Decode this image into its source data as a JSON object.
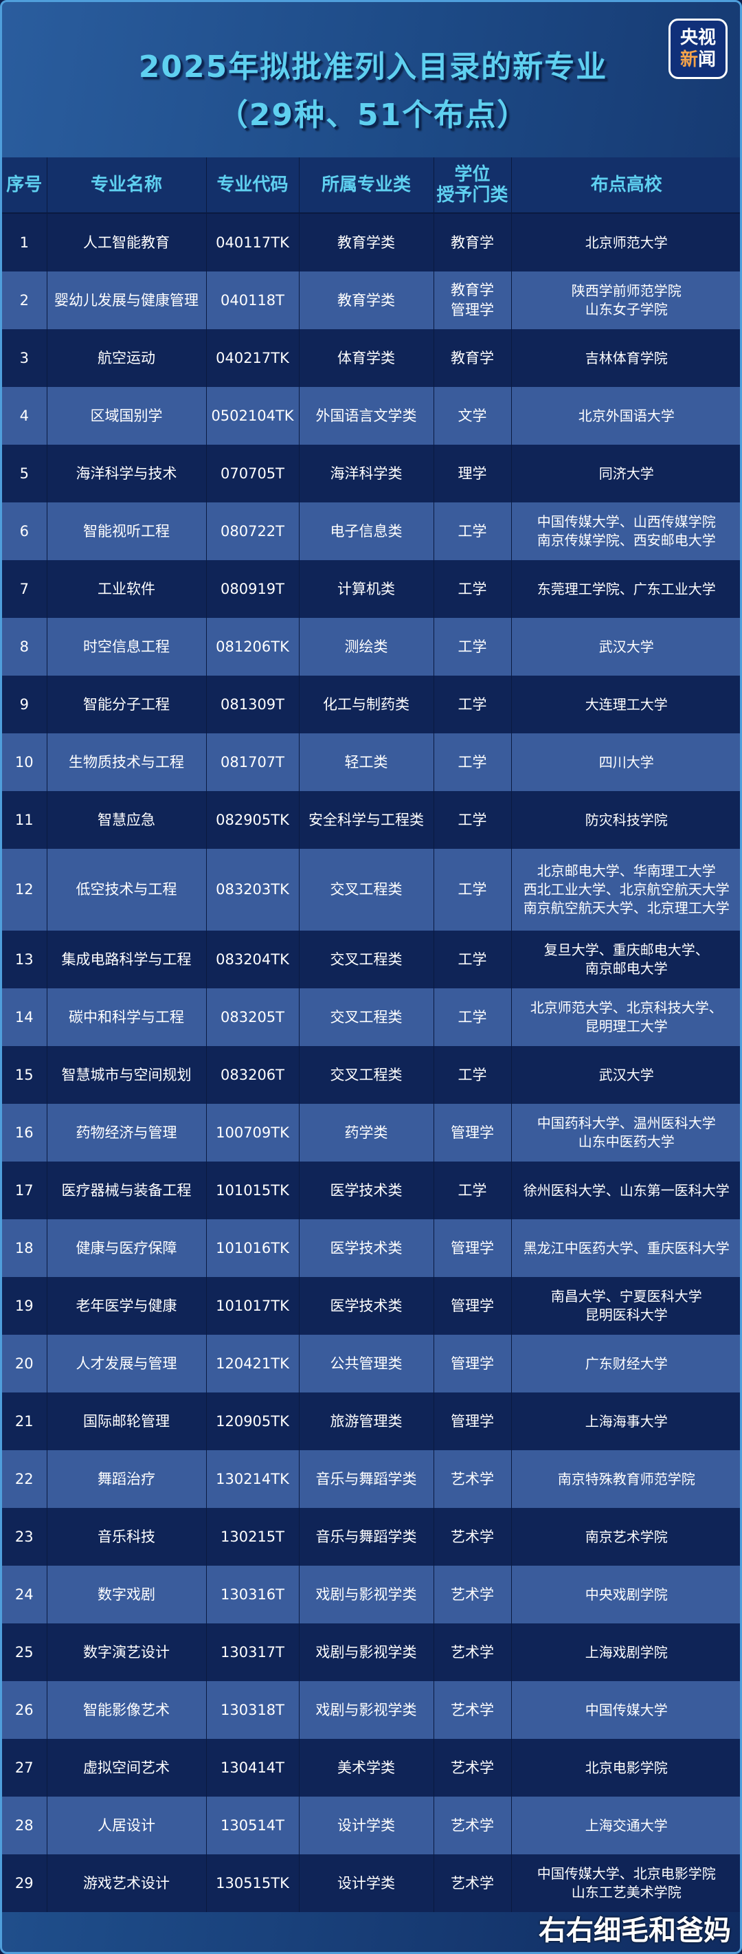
{
  "title_line1": "2025年拟批准列入目录的新专业",
  "title_line2": "（29种、51个布点）",
  "logo": {
    "line1": "央视",
    "line2a": "新",
    "line2b": "闻"
  },
  "colors": {
    "title": "#5fd0f0",
    "row_dark": "#0f2457",
    "row_light": "#3a5c9c",
    "header_bg": "#13306a"
  },
  "headers": [
    "序号",
    "专业名称",
    "专业代码",
    "所属专业类",
    "学位\n授予门类",
    "布点高校"
  ],
  "rows": [
    {
      "no": "1",
      "name": "人工智能教育",
      "code": "040117TK",
      "category": "教育学类",
      "degree": "教育学",
      "schools": "北京师范大学"
    },
    {
      "no": "2",
      "name": "婴幼儿发展与健康管理",
      "code": "040118T",
      "category": "教育学类",
      "degree": "教育学\n管理学",
      "schools": "陕西学前师范学院\n山东女子学院"
    },
    {
      "no": "3",
      "name": "航空运动",
      "code": "040217TK",
      "category": "体育学类",
      "degree": "教育学",
      "schools": "吉林体育学院"
    },
    {
      "no": "4",
      "name": "区域国别学",
      "code": "0502104TK",
      "category": "外国语言文学类",
      "degree": "文学",
      "schools": "北京外国语大学"
    },
    {
      "no": "5",
      "name": "海洋科学与技术",
      "code": "070705T",
      "category": "海洋科学类",
      "degree": "理学",
      "schools": "同济大学"
    },
    {
      "no": "6",
      "name": "智能视听工程",
      "code": "080722T",
      "category": "电子信息类",
      "degree": "工学",
      "schools": "中国传媒大学、山西传媒学院\n南京传媒学院、西安邮电大学"
    },
    {
      "no": "7",
      "name": "工业软件",
      "code": "080919T",
      "category": "计算机类",
      "degree": "工学",
      "schools": "东莞理工学院、广东工业大学"
    },
    {
      "no": "8",
      "name": "时空信息工程",
      "code": "081206TK",
      "category": "测绘类",
      "degree": "工学",
      "schools": "武汉大学"
    },
    {
      "no": "9",
      "name": "智能分子工程",
      "code": "081309T",
      "category": "化工与制药类",
      "degree": "工学",
      "schools": "大连理工大学"
    },
    {
      "no": "10",
      "name": "生物质技术与工程",
      "code": "081707T",
      "category": "轻工类",
      "degree": "工学",
      "schools": "四川大学"
    },
    {
      "no": "11",
      "name": "智慧应急",
      "code": "082905TK",
      "category": "安全科学与工程类",
      "degree": "工学",
      "schools": "防灾科技学院"
    },
    {
      "no": "12",
      "name": "低空技术与工程",
      "code": "083203TK",
      "category": "交叉工程类",
      "degree": "工学",
      "schools": "北京邮电大学、华南理工大学\n西北工业大学、北京航空航天大学\n南京航空航天大学、北京理工大学"
    },
    {
      "no": "13",
      "name": "集成电路科学与工程",
      "code": "083204TK",
      "category": "交叉工程类",
      "degree": "工学",
      "schools": "复旦大学、重庆邮电大学、\n南京邮电大学"
    },
    {
      "no": "14",
      "name": "碳中和科学与工程",
      "code": "083205T",
      "category": "交叉工程类",
      "degree": "工学",
      "schools": "北京师范大学、北京科技大学、\n昆明理工大学"
    },
    {
      "no": "15",
      "name": "智慧城市与空间规划",
      "code": "083206T",
      "category": "交叉工程类",
      "degree": "工学",
      "schools": "武汉大学"
    },
    {
      "no": "16",
      "name": "药物经济与管理",
      "code": "100709TK",
      "category": "药学类",
      "degree": "管理学",
      "schools": "中国药科大学、温州医科大学\n山东中医药大学"
    },
    {
      "no": "17",
      "name": "医疗器械与装备工程",
      "code": "101015TK",
      "category": "医学技术类",
      "degree": "工学",
      "schools": "徐州医科大学、山东第一医科大学"
    },
    {
      "no": "18",
      "name": "健康与医疗保障",
      "code": "101016TK",
      "category": "医学技术类",
      "degree": "管理学",
      "schools": "黑龙江中医药大学、重庆医科大学"
    },
    {
      "no": "19",
      "name": "老年医学与健康",
      "code": "101017TK",
      "category": "医学技术类",
      "degree": "管理学",
      "schools": "南昌大学、宁夏医科大学\n昆明医科大学"
    },
    {
      "no": "20",
      "name": "人才发展与管理",
      "code": "120421TK",
      "category": "公共管理类",
      "degree": "管理学",
      "schools": "广东财经大学"
    },
    {
      "no": "21",
      "name": "国际邮轮管理",
      "code": "120905TK",
      "category": "旅游管理类",
      "degree": "管理学",
      "schools": "上海海事大学"
    },
    {
      "no": "22",
      "name": "舞蹈治疗",
      "code": "130214TK",
      "category": "音乐与舞蹈学类",
      "degree": "艺术学",
      "schools": "南京特殊教育师范学院"
    },
    {
      "no": "23",
      "name": "音乐科技",
      "code": "130215T",
      "category": "音乐与舞蹈学类",
      "degree": "艺术学",
      "schools": "南京艺术学院"
    },
    {
      "no": "24",
      "name": "数字戏剧",
      "code": "130316T",
      "category": "戏剧与影视学类",
      "degree": "艺术学",
      "schools": "中央戏剧学院"
    },
    {
      "no": "25",
      "name": "数字演艺设计",
      "code": "130317T",
      "category": "戏剧与影视学类",
      "degree": "艺术学",
      "schools": "上海戏剧学院"
    },
    {
      "no": "26",
      "name": "智能影像艺术",
      "code": "130318T",
      "category": "戏剧与影视学类",
      "degree": "艺术学",
      "schools": "中国传媒大学"
    },
    {
      "no": "27",
      "name": "虚拟空间艺术",
      "code": "130414T",
      "category": "美术学类",
      "degree": "艺术学",
      "schools": "北京电影学院"
    },
    {
      "no": "28",
      "name": "人居设计",
      "code": "130514T",
      "category": "设计学类",
      "degree": "艺术学",
      "schools": "上海交通大学"
    },
    {
      "no": "29",
      "name": "游戏艺术设计",
      "code": "130515TK",
      "category": "设计学类",
      "degree": "艺术学",
      "schools": "中国传媒大学、北京电影学院\n山东工艺美术学院"
    }
  ],
  "watermark": "右右细毛和爸妈"
}
